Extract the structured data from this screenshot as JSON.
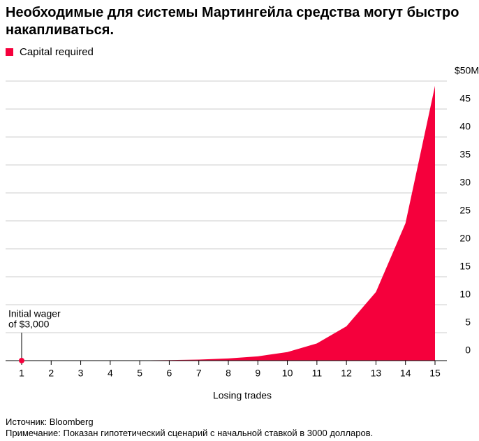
{
  "chart_data": {
    "type": "area",
    "title": "Необходимые для системы Мартингейла средства могут быстро накапливаться.",
    "categories": [
      "1",
      "2",
      "3",
      "4",
      "5",
      "6",
      "7",
      "8",
      "9",
      "10",
      "11",
      "12",
      "13",
      "14",
      "15"
    ],
    "series": [
      {
        "name": "Capital required",
        "color": "#f5003c",
        "values": [
          0.003,
          0.006,
          0.012,
          0.024,
          0.048,
          0.096,
          0.192,
          0.384,
          0.768,
          1.536,
          3.072,
          6.144,
          12.288,
          24.576,
          49.152
        ]
      }
    ],
    "ylim": [
      0,
      50
    ],
    "yticks": [
      0,
      5,
      10,
      15,
      20,
      25,
      30,
      35,
      40,
      45,
      {
        "value": 50,
        "label": "$50M"
      }
    ],
    "x_label": "Losing trades",
    "annotation": [
      "Initial wager",
      "of $3,000"
    ],
    "grid": true,
    "source": "Источник: Bloomberg",
    "note": "Примечание: Показан гипотетический сценарий с начальной ставкой в 3000 долларов."
  }
}
